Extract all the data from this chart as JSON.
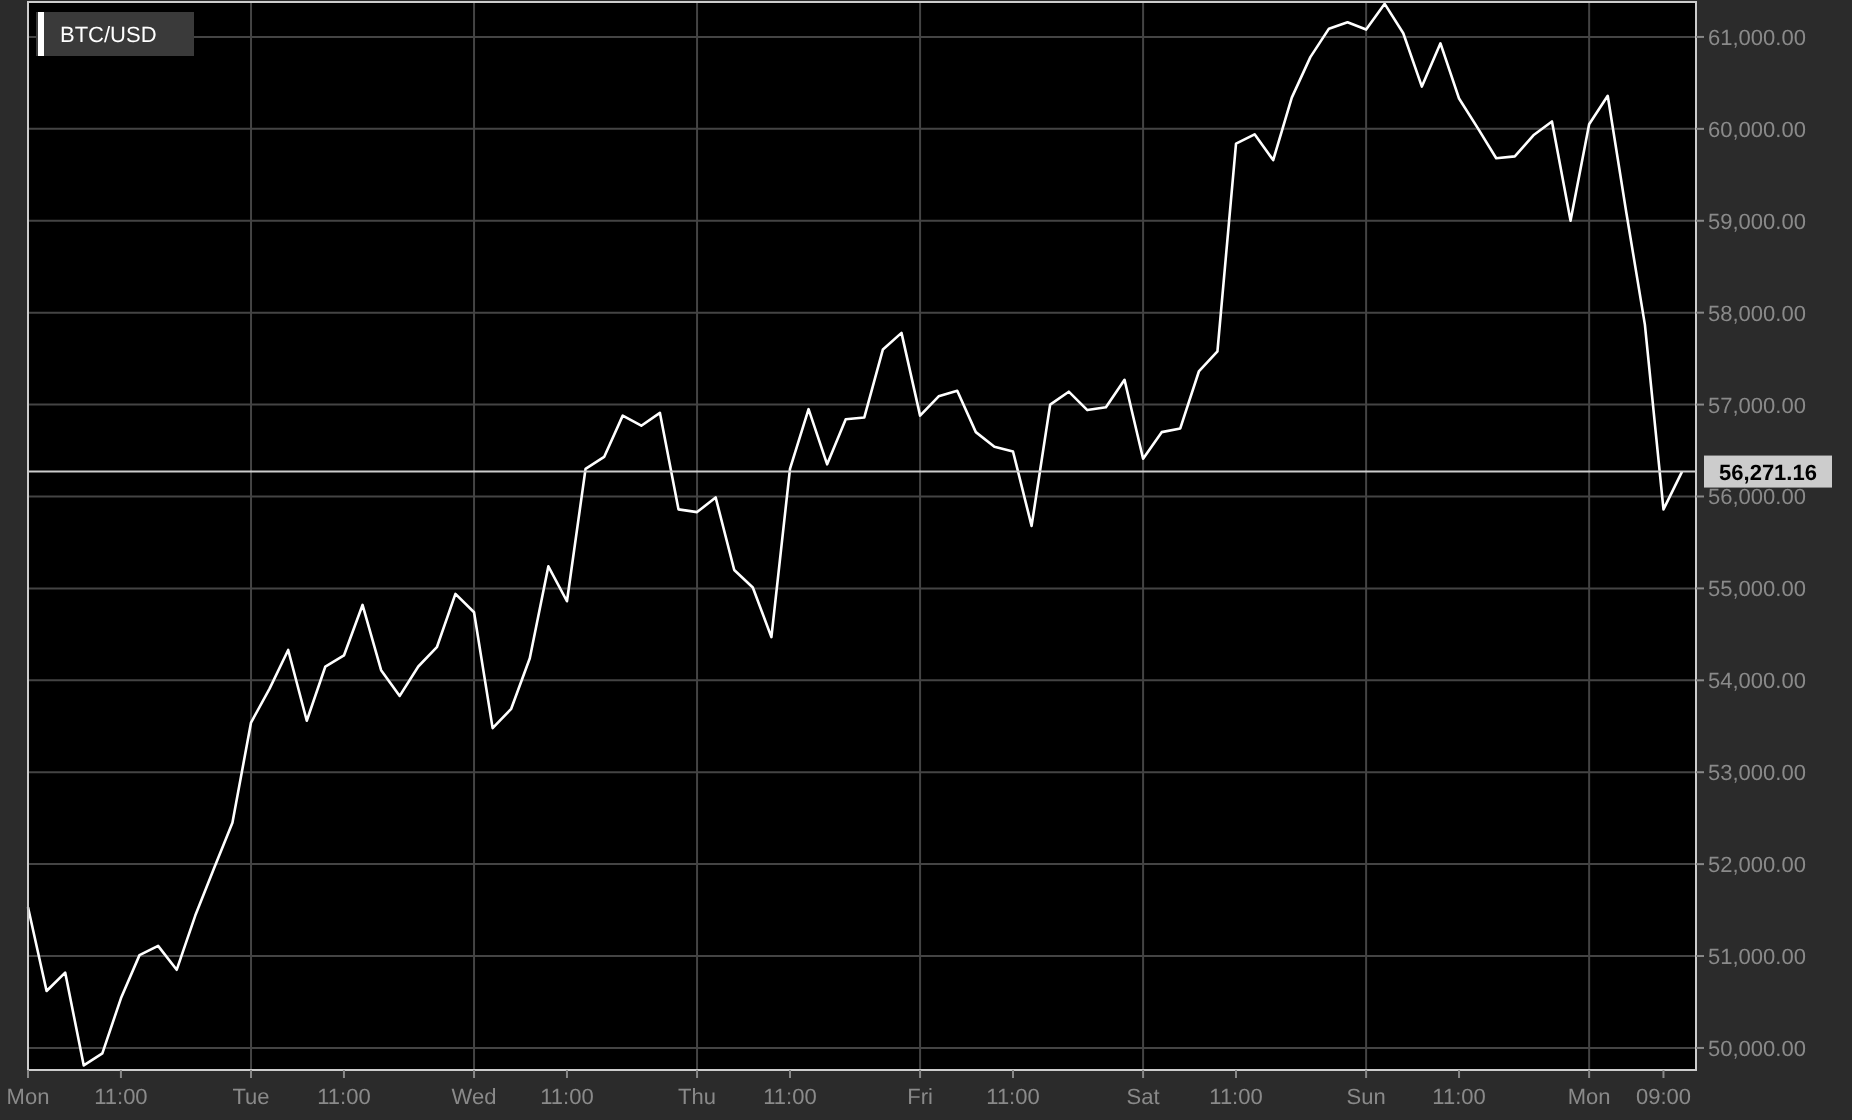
{
  "chart_data": {
    "type": "line",
    "title": "BTC/USD",
    "categories": [
      "Mon",
      null,
      null,
      null,
      null,
      "11:00",
      null,
      null,
      null,
      null,
      null,
      null,
      "Tue",
      null,
      null,
      null,
      null,
      "11:00",
      null,
      null,
      null,
      null,
      null,
      null,
      "Wed",
      null,
      null,
      null,
      null,
      "11:00",
      null,
      null,
      null,
      null,
      null,
      null,
      "Thu",
      null,
      null,
      null,
      null,
      "11:00",
      null,
      null,
      null,
      null,
      null,
      null,
      "Fri",
      null,
      null,
      null,
      null,
      "11:00",
      null,
      null,
      null,
      null,
      null,
      null,
      "Sat",
      null,
      null,
      null,
      null,
      "11:00",
      null,
      null,
      null,
      null,
      null,
      null,
      "Sun",
      null,
      null,
      null,
      null,
      "11:00",
      null,
      null,
      null,
      null,
      null,
      null,
      "Mon",
      null,
      null,
      null,
      "09:00",
      null
    ],
    "series": [
      {
        "color": "#ffffff",
        "values": [
          51530,
          50620,
          50820,
          49810,
          49940,
          50540,
          51010,
          51110,
          50850,
          51440,
          51950,
          52450,
          53540,
          53910,
          54330,
          53560,
          54150,
          54270,
          54820,
          54110,
          53830,
          54150,
          54360,
          54940,
          54740,
          53480,
          53690,
          54240,
          55240,
          54860,
          56300,
          56430,
          56880,
          56770,
          56910,
          55860,
          55830,
          55990,
          55200,
          55010,
          54470,
          56300,
          56950,
          56350,
          56840,
          56860,
          57600,
          57780,
          56880,
          57090,
          57150,
          56700,
          56540,
          56490,
          55680,
          57000,
          57140,
          56940,
          56970,
          57270,
          56410,
          56700,
          56740,
          57360,
          57580,
          59840,
          59940,
          59660,
          60340,
          60780,
          61090,
          61160,
          61080,
          61360,
          61040,
          60460,
          60930,
          60330,
          60010,
          59680,
          59700,
          59930,
          60080,
          59000,
          60050,
          60360,
          59090,
          57870,
          55860,
          56270
        ]
      }
    ],
    "ylim": [
      49760,
      61380
    ],
    "yticks": [
      {
        "value": 50000,
        "label": "50,000.00"
      },
      {
        "value": 51000,
        "label": "51,000.00"
      },
      {
        "value": 52000,
        "label": "52,000.00"
      },
      {
        "value": 53000,
        "label": "53,000.00"
      },
      {
        "value": 54000,
        "label": "54,000.00"
      },
      {
        "value": 55000,
        "label": "55,000.00"
      },
      {
        "value": 56000,
        "label": "56,000.00"
      },
      {
        "value": 57000,
        "label": "57,000.00"
      },
      {
        "value": 58000,
        "label": "58,000.00"
      },
      {
        "value": 59000,
        "label": "59,000.00"
      },
      {
        "value": 60000,
        "label": "60,000.00"
      },
      {
        "value": 61000,
        "label": "61,000.00"
      }
    ],
    "grid": true,
    "ref_lines": [
      {
        "axis": "y",
        "value": 56271.16,
        "label": "56,271.16",
        "color": "#cccccc"
      }
    ]
  }
}
